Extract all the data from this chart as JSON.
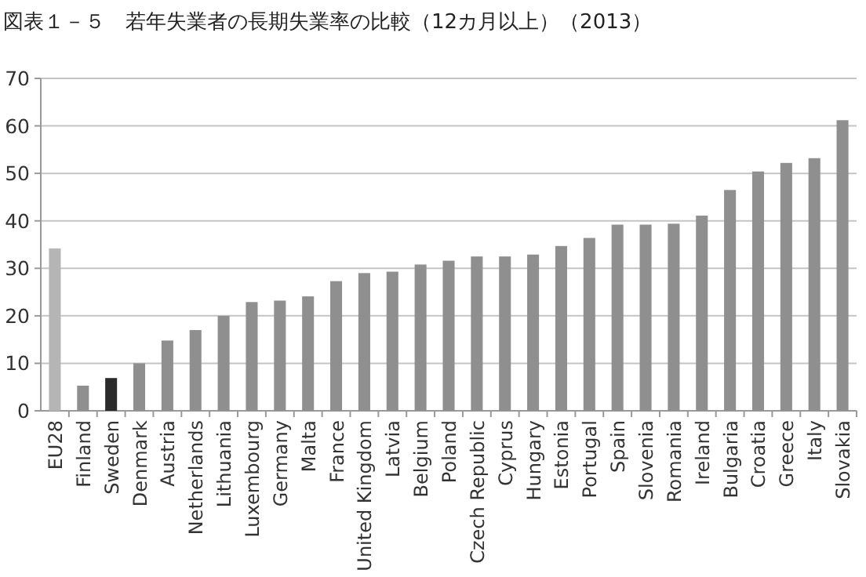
{
  "chart_data": {
    "type": "bar",
    "title": "図表１－５　若年失業者の長期失業率の比較（12カ月以上）（2013）",
    "categories": [
      "EU28",
      "Finland",
      "Sweden",
      "Denmark",
      "Austria",
      "Netherlands",
      "Lithuania",
      "Luxembourg",
      "Germany",
      "Malta",
      "France",
      "United Kingdom",
      "Latvia",
      "Belgium",
      "Poland",
      "Czech Republic",
      "Cyprus",
      "Hungary",
      "Estonia",
      "Portugal",
      "Spain",
      "Slovenia",
      "Romania",
      "Ireland",
      "Bulgaria",
      "Croatia",
      "Greece",
      "Italy",
      "Slovakia"
    ],
    "values": [
      34.2,
      5.3,
      6.9,
      10,
      14.8,
      17,
      20,
      22.9,
      23.2,
      24.1,
      27.3,
      29,
      29.3,
      30.8,
      31.6,
      32.5,
      32.5,
      32.9,
      34.7,
      36.4,
      39.2,
      39.2,
      39.4,
      41.1,
      46.5,
      50.4,
      52.2,
      53.2,
      61.2
    ],
    "colors": [
      "#b5b5b5",
      "#8f8f8f",
      "#2b2b2b",
      "#8f8f8f",
      "#8f8f8f",
      "#8f8f8f",
      "#8f8f8f",
      "#8f8f8f",
      "#8f8f8f",
      "#8f8f8f",
      "#8f8f8f",
      "#8f8f8f",
      "#8f8f8f",
      "#8f8f8f",
      "#8f8f8f",
      "#8f8f8f",
      "#8f8f8f",
      "#8f8f8f",
      "#8f8f8f",
      "#8f8f8f",
      "#8f8f8f",
      "#8f8f8f",
      "#8f8f8f",
      "#8f8f8f",
      "#8f8f8f",
      "#8f8f8f",
      "#8f8f8f",
      "#8f8f8f",
      "#8f8f8f"
    ],
    "ylim": [
      0,
      70
    ],
    "yticks": [
      0,
      10,
      20,
      30,
      40,
      50,
      60,
      70
    ],
    "grid": "y"
  }
}
